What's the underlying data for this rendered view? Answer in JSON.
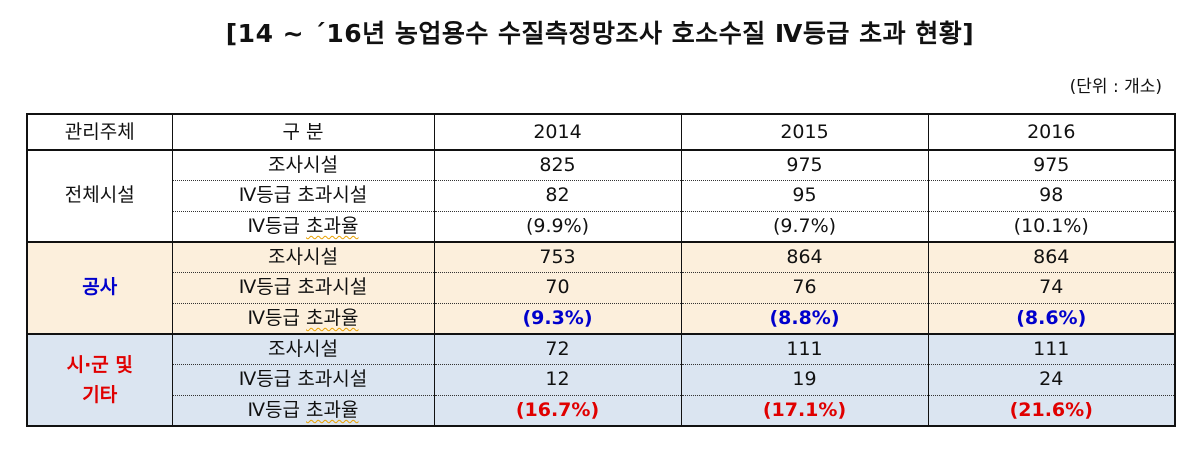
{
  "title": "[14 ~ ´16년 농업용수 수질측정망조사 호소수질 Ⅳ등급 초과 현황]",
  "unit": "(단위 : 개소)",
  "table": {
    "headers": [
      "관리주체",
      "구 분",
      "2014",
      "2015",
      "2016"
    ],
    "groups": [
      {
        "name": "전체시설",
        "rows": [
          {
            "label": "조사시설",
            "values": [
              "825",
              "975",
              "975"
            ]
          },
          {
            "label_pre": "Ⅳ등급 ",
            "label_main": "초과시설",
            "values": [
              "82",
              "95",
              "98"
            ]
          },
          {
            "label_pre": "Ⅳ등급 ",
            "label_main": "초과율",
            "values": [
              "(9.9%)",
              "(9.7%)",
              "(10.1%)"
            ]
          }
        ]
      },
      {
        "name": "공사",
        "rows": [
          {
            "label": "조사시설",
            "values": [
              "753",
              "864",
              "864"
            ]
          },
          {
            "label_pre": "Ⅳ등급 ",
            "label_main": "초과시설",
            "values": [
              "70",
              "76",
              "74"
            ]
          },
          {
            "label_pre": "Ⅳ등급 ",
            "label_main": "초과율",
            "values": [
              "(9.3%)",
              "(8.8%)",
              "(8.6%)"
            ]
          }
        ]
      },
      {
        "name_line1": "시·군 및",
        "name_line2": "기타",
        "rows": [
          {
            "label": "조사시설",
            "values": [
              "72",
              "111",
              "111"
            ]
          },
          {
            "label_pre": "Ⅳ등급 ",
            "label_main": "초과시설",
            "values": [
              "12",
              "19",
              "24"
            ]
          },
          {
            "label_pre": "Ⅳ등급 ",
            "label_main": "초과율",
            "values": [
              "(16.7%)",
              "(17.1%)",
              "(21.6%)"
            ]
          }
        ]
      }
    ]
  },
  "colors": {
    "gongsa_bg": "#fcefdc",
    "sigun_bg": "#dbe5f1",
    "blue_text": "#0000cc",
    "red_text": "#e00000"
  }
}
